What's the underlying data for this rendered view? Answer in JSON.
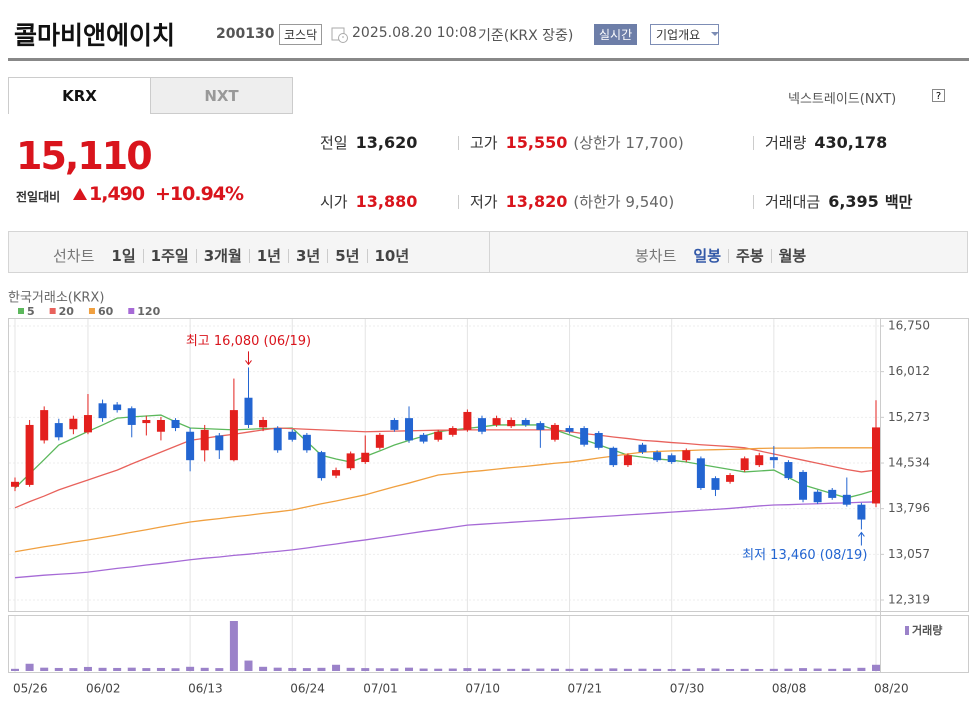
{
  "header": {
    "name": "콜마비앤에이치",
    "code": "200130",
    "market": "코스닥",
    "datetime": "2025.08.20 10:08",
    "basis": "기준(KRX 장중)",
    "realtime_button": "실시간",
    "company_button": "기업개요"
  },
  "tabs": {
    "krx": "KRX",
    "nxt": "NXT",
    "nextrade": "넥스트레이드(NXT)"
  },
  "quote": {
    "price": "15,110",
    "change_label": "전일대비",
    "change": "1,490",
    "change_pct": "+10.94%",
    "items": [
      {
        "label": "전일",
        "value": "13,620"
      },
      {
        "label": "고가",
        "value": "15,550",
        "extra": "(상한가 17,700)"
      },
      {
        "label": "거래량",
        "value": "430,178"
      },
      {
        "label": "시가",
        "value": "13,880"
      },
      {
        "label": "저가",
        "value": "13,820",
        "extra": "(하한가 9,540)"
      },
      {
        "label": "거래대금",
        "value": "6,395",
        "extra": "백만"
      }
    ]
  },
  "period_menu": {
    "line_chart": "선차트",
    "line_options": [
      "1일",
      "1주일",
      "3개월",
      "1년",
      "3년",
      "5년",
      "10년"
    ],
    "candle_chart": "봉차트",
    "candle_options": [
      "일봉",
      "주봉",
      "월봉"
    ]
  },
  "chart_data": {
    "type": "candlestick",
    "title": "한국거래소(KRX)",
    "categories": [
      "05/26",
      null,
      null,
      null,
      null,
      "06/02",
      null,
      null,
      null,
      null,
      null,
      null,
      "06/13",
      null,
      null,
      null,
      null,
      null,
      null,
      "06/24",
      null,
      null,
      null,
      null,
      "07/01",
      null,
      null,
      null,
      null,
      null,
      null,
      "07/10",
      null,
      null,
      null,
      null,
      null,
      null,
      "07/21",
      null,
      null,
      null,
      null,
      null,
      null,
      "07/30",
      null,
      null,
      null,
      null,
      null,
      null,
      "08/08",
      null,
      null,
      null,
      null,
      null,
      null,
      "08/20"
    ],
    "open": [
      14150,
      14180,
      14900,
      15180,
      15080,
      15030,
      15500,
      15480,
      15420,
      15180,
      15040,
      15230,
      15040,
      14740,
      14980,
      14580,
      15590,
      15110,
      15100,
      15040,
      14990,
      14710,
      14330,
      14450,
      14550,
      14780,
      15230,
      15260,
      14990,
      14910,
      14990,
      15070,
      15260,
      15150,
      15130,
      15230,
      15180,
      14910,
      15100,
      15100,
      15020,
      14780,
      14500,
      14830,
      14710,
      14660,
      14580,
      14610,
      14290,
      14230,
      14420,
      14500,
      14630,
      14550,
      14390,
      14070,
      14100,
      14020,
      13860,
      13880
    ],
    "high": [
      14300,
      15230,
      15450,
      15250,
      15300,
      15650,
      15560,
      15520,
      15450,
      15300,
      15280,
      15260,
      15100,
      15150,
      15020,
      15900,
      16080,
      15280,
      15130,
      15080,
      15020,
      14730,
      14460,
      14720,
      14980,
      15020,
      15260,
      15450,
      15020,
      15070,
      15130,
      15400,
      15300,
      15300,
      15270,
      15260,
      15210,
      15180,
      15140,
      15130,
      15050,
      14800,
      14690,
      14860,
      14740,
      14690,
      14770,
      14640,
      14320,
      14370,
      14640,
      14700,
      14810,
      14580,
      14420,
      14100,
      14130,
      14300,
      13890,
      15550
    ],
    "low": [
      14080,
      14150,
      14850,
      14900,
      15000,
      15000,
      15200,
      15350,
      14950,
      14980,
      14900,
      15050,
      14400,
      14560,
      14600,
      14560,
      15100,
      15050,
      14700,
      14880,
      14700,
      14250,
      14290,
      14420,
      14520,
      14750,
      15040,
      14860,
      14850,
      14880,
      14960,
      15040,
      15000,
      15120,
      15100,
      15120,
      14780,
      14880,
      15010,
      14800,
      14750,
      14470,
      14470,
      14680,
      14550,
      14520,
      14550,
      14100,
      14000,
      14200,
      14390,
      14470,
      14450,
      14260,
      13900,
      13870,
      13940,
      13830,
      13460,
      13820
    ],
    "close": [
      14230,
      15150,
      15390,
      14950,
      15250,
      15310,
      15260,
      15390,
      15150,
      15230,
      15230,
      15100,
      14580,
      15070,
      14740,
      15390,
      15150,
      15230,
      14740,
      14910,
      14740,
      14290,
      14420,
      14690,
      14700,
      14990,
      15070,
      14900,
      14880,
      15040,
      15100,
      15360,
      15040,
      15260,
      15230,
      15150,
      15070,
      15150,
      15040,
      14830,
      14780,
      14500,
      14660,
      14710,
      14580,
      14550,
      14740,
      14130,
      14100,
      14340,
      14610,
      14660,
      14580,
      14290,
      13940,
      13900,
      13970,
      13860,
      13620,
      15110
    ],
    "up_color": "#e3201d",
    "down_color": "#2365d1",
    "series": [
      {
        "name": "5",
        "color": "#5cb85c",
        "values": [
          14130,
          14360,
          14590,
          14825,
          14935,
          15045,
          15150,
          15260,
          15280,
          15295,
          15310,
          15200,
          15100,
          15090,
          15080,
          15070,
          15080,
          15090,
          15095,
          15100,
          14880,
          14660,
          14600,
          14550,
          14640,
          14730,
          14825,
          14900,
          14970,
          15040,
          15070,
          15095,
          15120,
          15150,
          15150,
          15150,
          15150,
          15070,
          14990,
          14910,
          14830,
          14745,
          14660,
          14630,
          14600,
          14580,
          14550,
          14510,
          14470,
          14430,
          14390,
          14405,
          14420,
          14300,
          14180,
          14110,
          14040,
          13970,
          14030,
          14100
        ]
      },
      {
        "name": "20",
        "color": "#e8625c",
        "values": [
          13810,
          13910,
          14000,
          14100,
          14180,
          14260,
          14340,
          14420,
          14520,
          14615,
          14710,
          14805,
          14900,
          14935,
          14970,
          15000,
          15035,
          15070,
          15100,
          15090,
          15080,
          15070,
          15060,
          15050,
          15040,
          15045,
          15050,
          15055,
          15060,
          15065,
          15065,
          15070,
          15070,
          15070,
          15070,
          15070,
          15070,
          15070,
          15040,
          15010,
          14985,
          14955,
          14930,
          14900,
          14885,
          14865,
          14850,
          14830,
          14815,
          14800,
          14780,
          14730,
          14680,
          14630,
          14580,
          14530,
          14480,
          14430,
          14390,
          14420
        ]
      },
      {
        "name": "60",
        "color": "#f0a040",
        "values": [
          13100,
          13140,
          13180,
          13215,
          13255,
          13290,
          13330,
          13370,
          13415,
          13455,
          13500,
          13540,
          13580,
          13610,
          13635,
          13665,
          13690,
          13720,
          13745,
          13775,
          13825,
          13875,
          13920,
          13970,
          14020,
          14085,
          14150,
          14210,
          14275,
          14340,
          14365,
          14390,
          14410,
          14435,
          14460,
          14480,
          14505,
          14530,
          14550,
          14580,
          14615,
          14645,
          14680,
          14710,
          14720,
          14730,
          14735,
          14745,
          14750,
          14755,
          14760,
          14770,
          14775,
          14775,
          14775,
          14780,
          14780,
          14780,
          14780,
          14780
        ]
      },
      {
        "name": "120",
        "color": "#a66ad6",
        "values": [
          12680,
          12700,
          12720,
          12735,
          12750,
          12770,
          12800,
          12830,
          12855,
          12885,
          12910,
          12940,
          12970,
          12995,
          13015,
          13040,
          13060,
          13085,
          13105,
          13130,
          13160,
          13195,
          13225,
          13260,
          13290,
          13325,
          13360,
          13395,
          13430,
          13460,
          13495,
          13530,
          13545,
          13560,
          13575,
          13590,
          13605,
          13620,
          13635,
          13650,
          13665,
          13680,
          13695,
          13710,
          13725,
          13740,
          13755,
          13770,
          13785,
          13800,
          13820,
          13840,
          13855,
          13860,
          13870,
          13875,
          13885,
          13890,
          13900,
          13905
        ]
      }
    ],
    "volume": {
      "name": "거래량",
      "color": "#9b82c9",
      "values": [
        150000,
        500000,
        230000,
        210000,
        200000,
        280000,
        220000,
        210000,
        230000,
        200000,
        210000,
        190000,
        290000,
        220000,
        200000,
        3450000,
        720000,
        290000,
        230000,
        210000,
        200000,
        220000,
        430000,
        220000,
        200000,
        190000,
        180000,
        230000,
        170000,
        160000,
        170000,
        200000,
        170000,
        160000,
        150000,
        160000,
        170000,
        160000,
        150000,
        170000,
        160000,
        180000,
        150000,
        160000,
        150000,
        140000,
        150000,
        190000,
        170000,
        140000,
        150000,
        140000,
        150000,
        160000,
        200000,
        170000,
        150000,
        180000,
        220000,
        430178
      ]
    },
    "ylim": [
      12319,
      16750
    ],
    "yticks": [
      {
        "value": 16750,
        "label": "16,750"
      },
      {
        "value": 16012,
        "label": "16,012"
      },
      {
        "value": 15273,
        "label": "15,273"
      },
      {
        "value": 14534,
        "label": "14,534"
      },
      {
        "value": 13796,
        "label": "13,796"
      },
      {
        "value": 13057,
        "label": "13,057"
      },
      {
        "value": 12319,
        "label": "12,319"
      }
    ],
    "annotations": {
      "high": "최고 16,080 (06/19)",
      "low": "최저 13,460 (08/19)"
    }
  }
}
